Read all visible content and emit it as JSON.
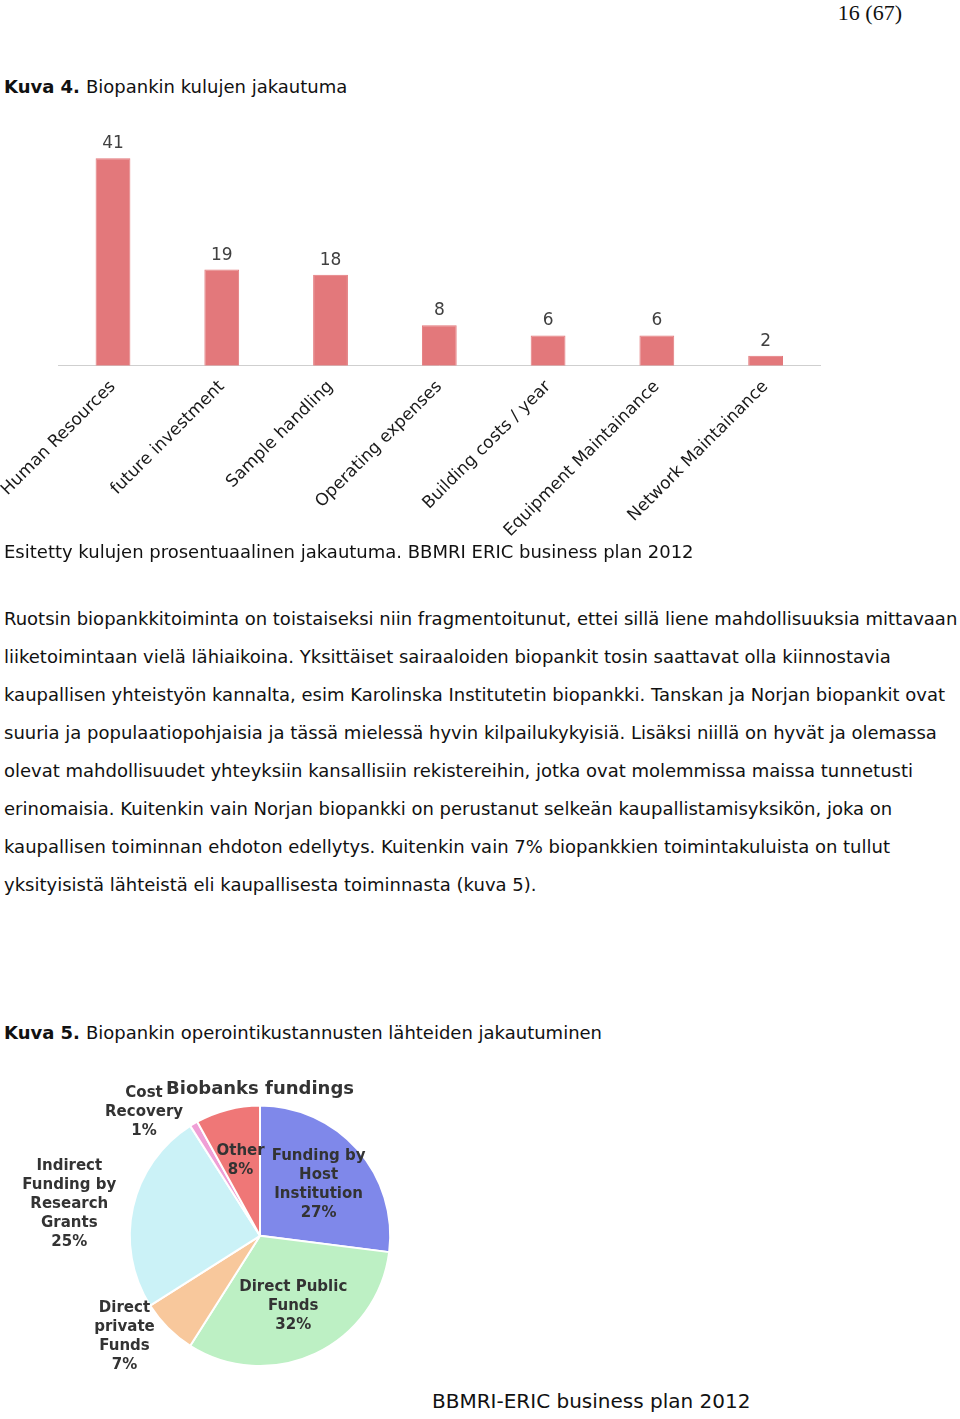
{
  "page_number": "16 (67)",
  "figures": [
    {
      "label": "Kuva 4.",
      "caption": "Biopankin kulujen jakautuma",
      "source": "Esitetty kulujen prosentuaalinen jakautuma. BBMRI ERIC business plan 2012"
    },
    {
      "label": "Kuva 5.",
      "caption": "Biopankin operointikustannusten lähteiden jakautuminen"
    }
  ],
  "paragraph": "Ruotsin biopankkitoiminta on toistaiseksi niin fragmentoitunut, ettei sillä liene mahdollisuuksia mittavaan liiketoimintaan vielä lähiaikoina. Yksittäiset sairaaloiden biopankit tosin saattavat olla kiinnostavia kaupallisen yhteistyön kannalta, esim Karolinska Institutetin biopankki. Tanskan ja Norjan biopankit ovat suuria ja populaatiopohjaisia ja tässä mielessä hyvin kilpailukykyisiä. Lisäksi niillä on hyvät ja olemassa olevat mahdollisuudet yhteyksiin kansallisiin rekistereihin, jotka ovat molemmissa maissa tunnetusti erinomaisia. Kuitenkin vain Norjan biopankki on perustanut selkeän kaupallistamisyksikön, joka on kaupallisen toiminnan ehdoton edellytys. Kuitenkin vain 7% biopankkien toimintakuluista on tullut yksityisistä lähteistä eli kaupallisesta toiminnasta (kuva 5).",
  "footer": "BBMRI-ERIC business plan 2012",
  "chart_data": [
    {
      "type": "bar",
      "categories": [
        "Human Resources",
        "future investment",
        "Sample handling",
        "Operating expenses",
        "Building costs / year",
        "Equipment Maintainance",
        "Network Maintainance"
      ],
      "values": [
        41,
        19,
        18,
        8,
        6,
        6,
        2
      ],
      "color": "#e3787b",
      "grid": false,
      "data_labels": true,
      "tick_labels": "x"
    },
    {
      "type": "pie",
      "title": "Biobanks fundings",
      "categories": [
        "Funding by Host Institution",
        "Direct Public Funds",
        "Direct private Funds",
        "Indirect Funding by Research Grants",
        "Cost Recovery",
        "Other"
      ],
      "values": [
        27,
        32,
        7,
        25,
        1,
        8
      ],
      "value_labels": [
        "27%",
        "32%",
        "7%",
        "25%",
        "1%",
        "8%"
      ],
      "colors": [
        "#7f88ea",
        "#bdf0c4",
        "#f8c89c",
        "#cbf2f7",
        "#ef9fd6",
        "#ef7777"
      ],
      "data_labels": true
    }
  ]
}
